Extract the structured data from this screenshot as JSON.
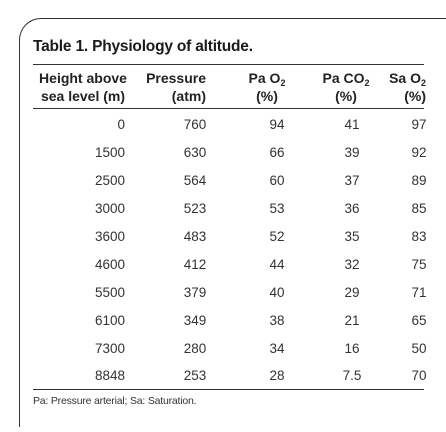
{
  "table": {
    "title": "Table 1. Physiology of altitude.",
    "headers": {
      "height": [
        "Height above",
        "sea level (m)"
      ],
      "pressure": [
        "Pressure",
        "(atm)"
      ],
      "pao2": {
        "main": "Pa O",
        "sub": "2",
        "unit": "(%)"
      },
      "paco2": {
        "main": "Pa CO",
        "sub": "2",
        "unit": "(%)"
      },
      "sao2": {
        "main": "Sa O",
        "sub": "2",
        "unit": "(%)"
      }
    },
    "rows": [
      [
        "0",
        "760",
        "94",
        "41",
        "97"
      ],
      [
        "1500",
        "630",
        "66",
        "39",
        "92"
      ],
      [
        "2500",
        "564",
        "60",
        "37",
        "89"
      ],
      [
        "3000",
        "523",
        "53",
        "36",
        "85"
      ],
      [
        "3600",
        "483",
        "52",
        "35",
        "83"
      ],
      [
        "4600",
        "412",
        "44",
        "32",
        "75"
      ],
      [
        "5500",
        "379",
        "40",
        "29",
        "71"
      ],
      [
        "6100",
        "349",
        "38",
        "21",
        "65"
      ],
      [
        "7300",
        "280",
        "34",
        "16",
        "50"
      ],
      [
        "8848",
        "253",
        "28",
        "7.5",
        "70"
      ]
    ],
    "footnote": "Pa: Pressure arterial; Sa: Saturation."
  }
}
